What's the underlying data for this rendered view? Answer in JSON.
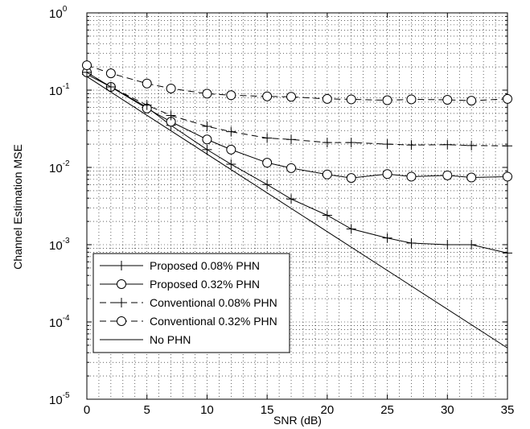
{
  "chart_data": {
    "type": "line",
    "xlabel": "SNR (dB)",
    "ylabel": "Channel Estimation MSE",
    "xlim": [
      0,
      35
    ],
    "ylim": [
      1e-05,
      1
    ],
    "yscale": "log",
    "grid": true,
    "legend_position": "bottom-left",
    "x_ticks": [
      "0",
      "5",
      "10",
      "15",
      "20",
      "25",
      "30",
      "35"
    ],
    "y_ticks": [
      {
        "base": "10",
        "exp": "-5",
        "value": 1e-05
      },
      {
        "base": "10",
        "exp": "-4",
        "value": 0.0001
      },
      {
        "base": "10",
        "exp": "-3",
        "value": 0.001
      },
      {
        "base": "10",
        "exp": "-2",
        "value": 0.01
      },
      {
        "base": "10",
        "exp": "-1",
        "value": 0.1
      },
      {
        "base": "10",
        "exp": "0",
        "value": 1
      }
    ],
    "series": [
      {
        "name": "Proposed 0.08% PHN",
        "line": "solid",
        "marker": "plus",
        "x": [
          0,
          2,
          5,
          7,
          10,
          12,
          15,
          17,
          20,
          22,
          25,
          27,
          30,
          32,
          35
        ],
        "y": [
          0.16,
          0.11,
          0.06,
          0.035,
          0.017,
          0.011,
          0.006,
          0.0039,
          0.0024,
          0.0016,
          0.00122,
          0.00105,
          0.001,
          0.001,
          0.00078
        ]
      },
      {
        "name": "Proposed 0.32% PHN",
        "line": "solid",
        "marker": "circle",
        "x": [
          0,
          2,
          5,
          7,
          10,
          12,
          15,
          17,
          20,
          22,
          25,
          27,
          30,
          32,
          35
        ],
        "y": [
          0.17,
          0.11,
          0.058,
          0.039,
          0.023,
          0.017,
          0.0115,
          0.0098,
          0.0081,
          0.0073,
          0.0082,
          0.0076,
          0.0079,
          0.0074,
          0.0076
        ]
      },
      {
        "name": "Conventional 0.08% PHN",
        "line": "dashed",
        "marker": "plus",
        "x": [
          0,
          2,
          5,
          7,
          10,
          12,
          15,
          17,
          20,
          22,
          25,
          27,
          30,
          32,
          35
        ],
        "y": [
          0.17,
          0.11,
          0.064,
          0.047,
          0.034,
          0.029,
          0.024,
          0.023,
          0.021,
          0.021,
          0.02,
          0.0195,
          0.0197,
          0.0192,
          0.019
        ]
      },
      {
        "name": "Conventional 0.32% PHN",
        "line": "dashed",
        "marker": "circle-dash",
        "x": [
          0,
          2,
          5,
          7,
          10,
          12,
          15,
          17,
          20,
          22,
          25,
          27,
          30,
          32,
          35
        ],
        "y": [
          0.21,
          0.165,
          0.122,
          0.105,
          0.09,
          0.086,
          0.083,
          0.082,
          0.077,
          0.076,
          0.074,
          0.076,
          0.075,
          0.073,
          0.077
        ]
      },
      {
        "name": "No PHN",
        "line": "solid",
        "marker": "none",
        "x": [
          0,
          35
        ],
        "y": [
          0.15,
          4.6e-05
        ]
      }
    ]
  }
}
